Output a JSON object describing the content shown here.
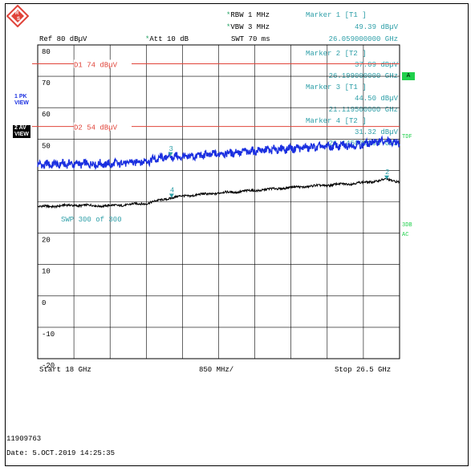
{
  "header": {
    "rbw": "RBW 1 MHz",
    "vbw": "VBW 3 MHz",
    "ref": "Ref  80 dBµV",
    "att": "Att  10 dB",
    "swt": "SWT 70 ms"
  },
  "markers": [
    {
      "title": "Marker 1 [T1 ]",
      "level": "49.39 dBµV",
      "freq": "26.059000000 GHz"
    },
    {
      "title": "Marker 2 [T2 ]",
      "level": "37.09 dBµV",
      "freq": "26.199000000 GHz"
    },
    {
      "title": "Marker 3 [T1 ]",
      "level": "44.50 dBµV",
      "freq": "21.119500000 GHz"
    },
    {
      "title": "Marker 4 [T2 ]",
      "level": "31.32 dBµV",
      "freq": "21.145000000 GHz"
    }
  ],
  "side_labels": {
    "trace1_a": "1 PK",
    "trace1_b": "VIEW",
    "trace2_a": "2 AV",
    "trace2_b": "VIEW",
    "a_box": "A",
    "tdf": "TDF",
    "db3": "3DB",
    "ac": "AC"
  },
  "footer": {
    "start": "Start 18 GHz",
    "span": "850 MHz/",
    "stop": "Stop 26.5 GHz",
    "id": "11909763",
    "date": "Date: 5.OCT.2019  14:25:35"
  },
  "colors": {
    "peak_trace": "#1a2fe0",
    "avg_trace": "#000000",
    "limit_lines": "#e0443a",
    "annotation": "#2e9fa8",
    "grid": "#000000"
  },
  "chart_data": {
    "type": "line",
    "title": "",
    "xlabel": "",
    "ylabel": "",
    "xlim": [
      18,
      26.5
    ],
    "ylim": [
      -20,
      80
    ],
    "y_ticks": [
      80,
      70,
      60,
      50,
      40,
      30,
      20,
      10,
      0,
      -10,
      -20
    ],
    "y_tick_labels": [
      "80",
      "70",
      "60",
      "50",
      "",
      "",
      "20",
      "10",
      "0",
      "-10",
      "-20"
    ],
    "grid": true,
    "limit_lines": [
      {
        "name": "D1 74 dBµV",
        "value": 74
      },
      {
        "name": "D2 54 dBµV",
        "value": 54
      }
    ],
    "sweep_label": "SWP  300 of  300",
    "series": [
      {
        "name": "1 PK",
        "x": [
          18.0,
          18.85,
          19.7,
          20.55,
          21.12,
          21.4,
          22.25,
          23.1,
          23.95,
          24.8,
          25.65,
          26.06,
          26.5
        ],
        "values": [
          41.8,
          42.1,
          42.0,
          43.0,
          44.5,
          44.2,
          45.3,
          46.2,
          47.0,
          47.6,
          48.3,
          49.39,
          48.6
        ]
      },
      {
        "name": "2 AV",
        "x": [
          18.0,
          18.85,
          19.7,
          20.55,
          21.145,
          21.4,
          22.25,
          23.1,
          23.95,
          24.8,
          25.65,
          26.199,
          26.5
        ],
        "values": [
          28.4,
          28.9,
          28.7,
          29.5,
          31.32,
          31.8,
          32.8,
          33.6,
          34.6,
          35.3,
          36.1,
          37.09,
          36.4
        ]
      }
    ],
    "marker_points": [
      {
        "label": "2",
        "x": 26.199,
        "y": 37.09
      },
      {
        "label": "3",
        "x": 21.1195,
        "y": 44.5
      },
      {
        "label": "4",
        "x": 21.145,
        "y": 31.32
      }
    ]
  }
}
